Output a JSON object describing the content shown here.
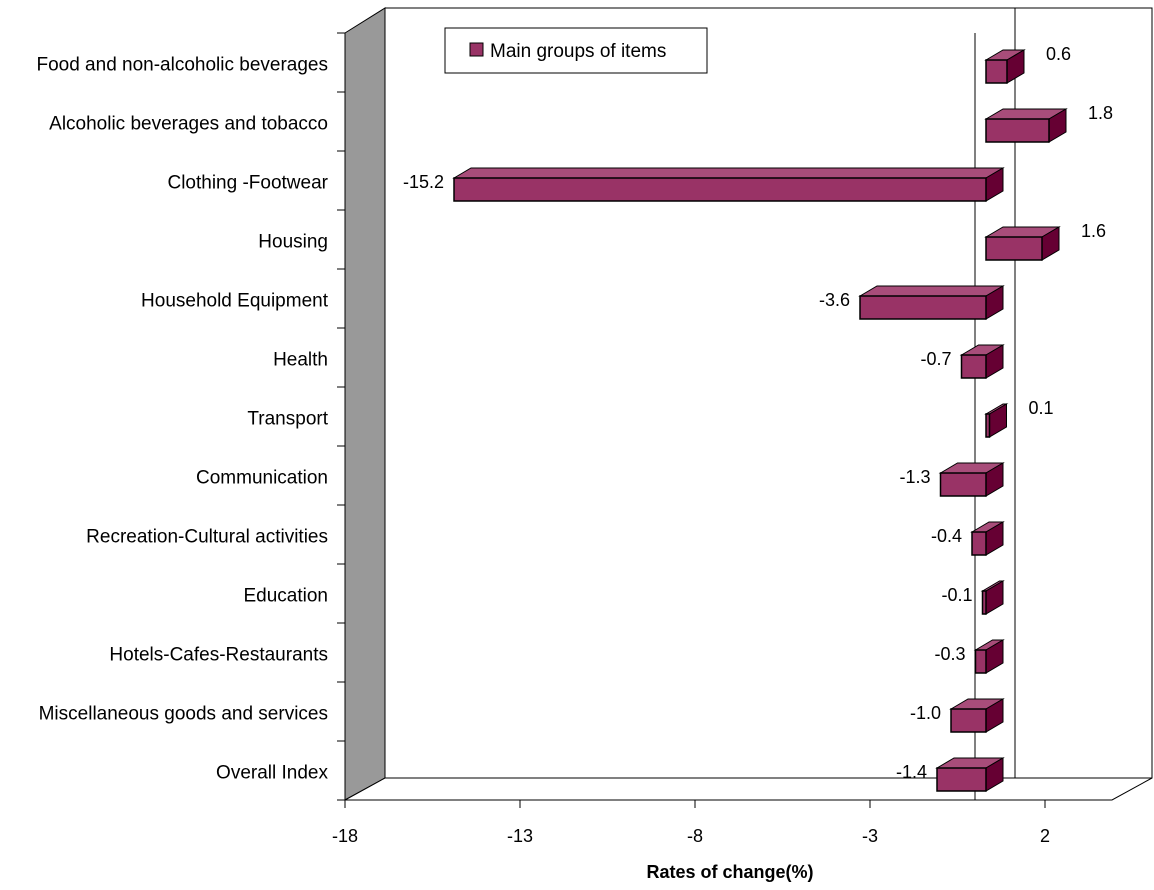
{
  "chart_data": {
    "type": "bar",
    "orientation": "horizontal",
    "categories": [
      "Food and non-alcoholic beverages",
      "Alcoholic beverages and tobacco",
      "Clothing -Footwear",
      "Housing",
      "Household Equipment",
      "Health",
      "Transport",
      "Communication",
      "Recreation-Cultural activities",
      "Education",
      "Hotels-Cafes-Restaurants",
      "Miscellaneous goods and services",
      "Overall Index"
    ],
    "series": [
      {
        "name": "Main groups of items",
        "values": [
          0.6,
          1.8,
          -15.2,
          1.6,
          -3.6,
          -0.7,
          0.1,
          -1.3,
          -0.4,
          -0.1,
          -0.3,
          -1.0,
          -1.4
        ],
        "labels": [
          "0.6",
          "1.8",
          "-15.2",
          "1.6",
          "-3.6",
          "-0.7",
          "0.1",
          "-1.3",
          "-0.4",
          "-0.1",
          "-0.3",
          "-1.0",
          "-1.4"
        ]
      }
    ],
    "xlabel": "Rates of change(%)",
    "ylabel": "",
    "xlim": [
      -18,
      2
    ],
    "xticks": [
      "-18",
      "-13",
      "-8",
      "-3",
      "2"
    ],
    "legend_position": "top",
    "grid": false,
    "three_d": true,
    "colors": {
      "bar_front": "#993366",
      "bar_side": "#660033",
      "bar_top": "#a84d7a",
      "wall": "#999999",
      "outline": "#000000"
    }
  }
}
